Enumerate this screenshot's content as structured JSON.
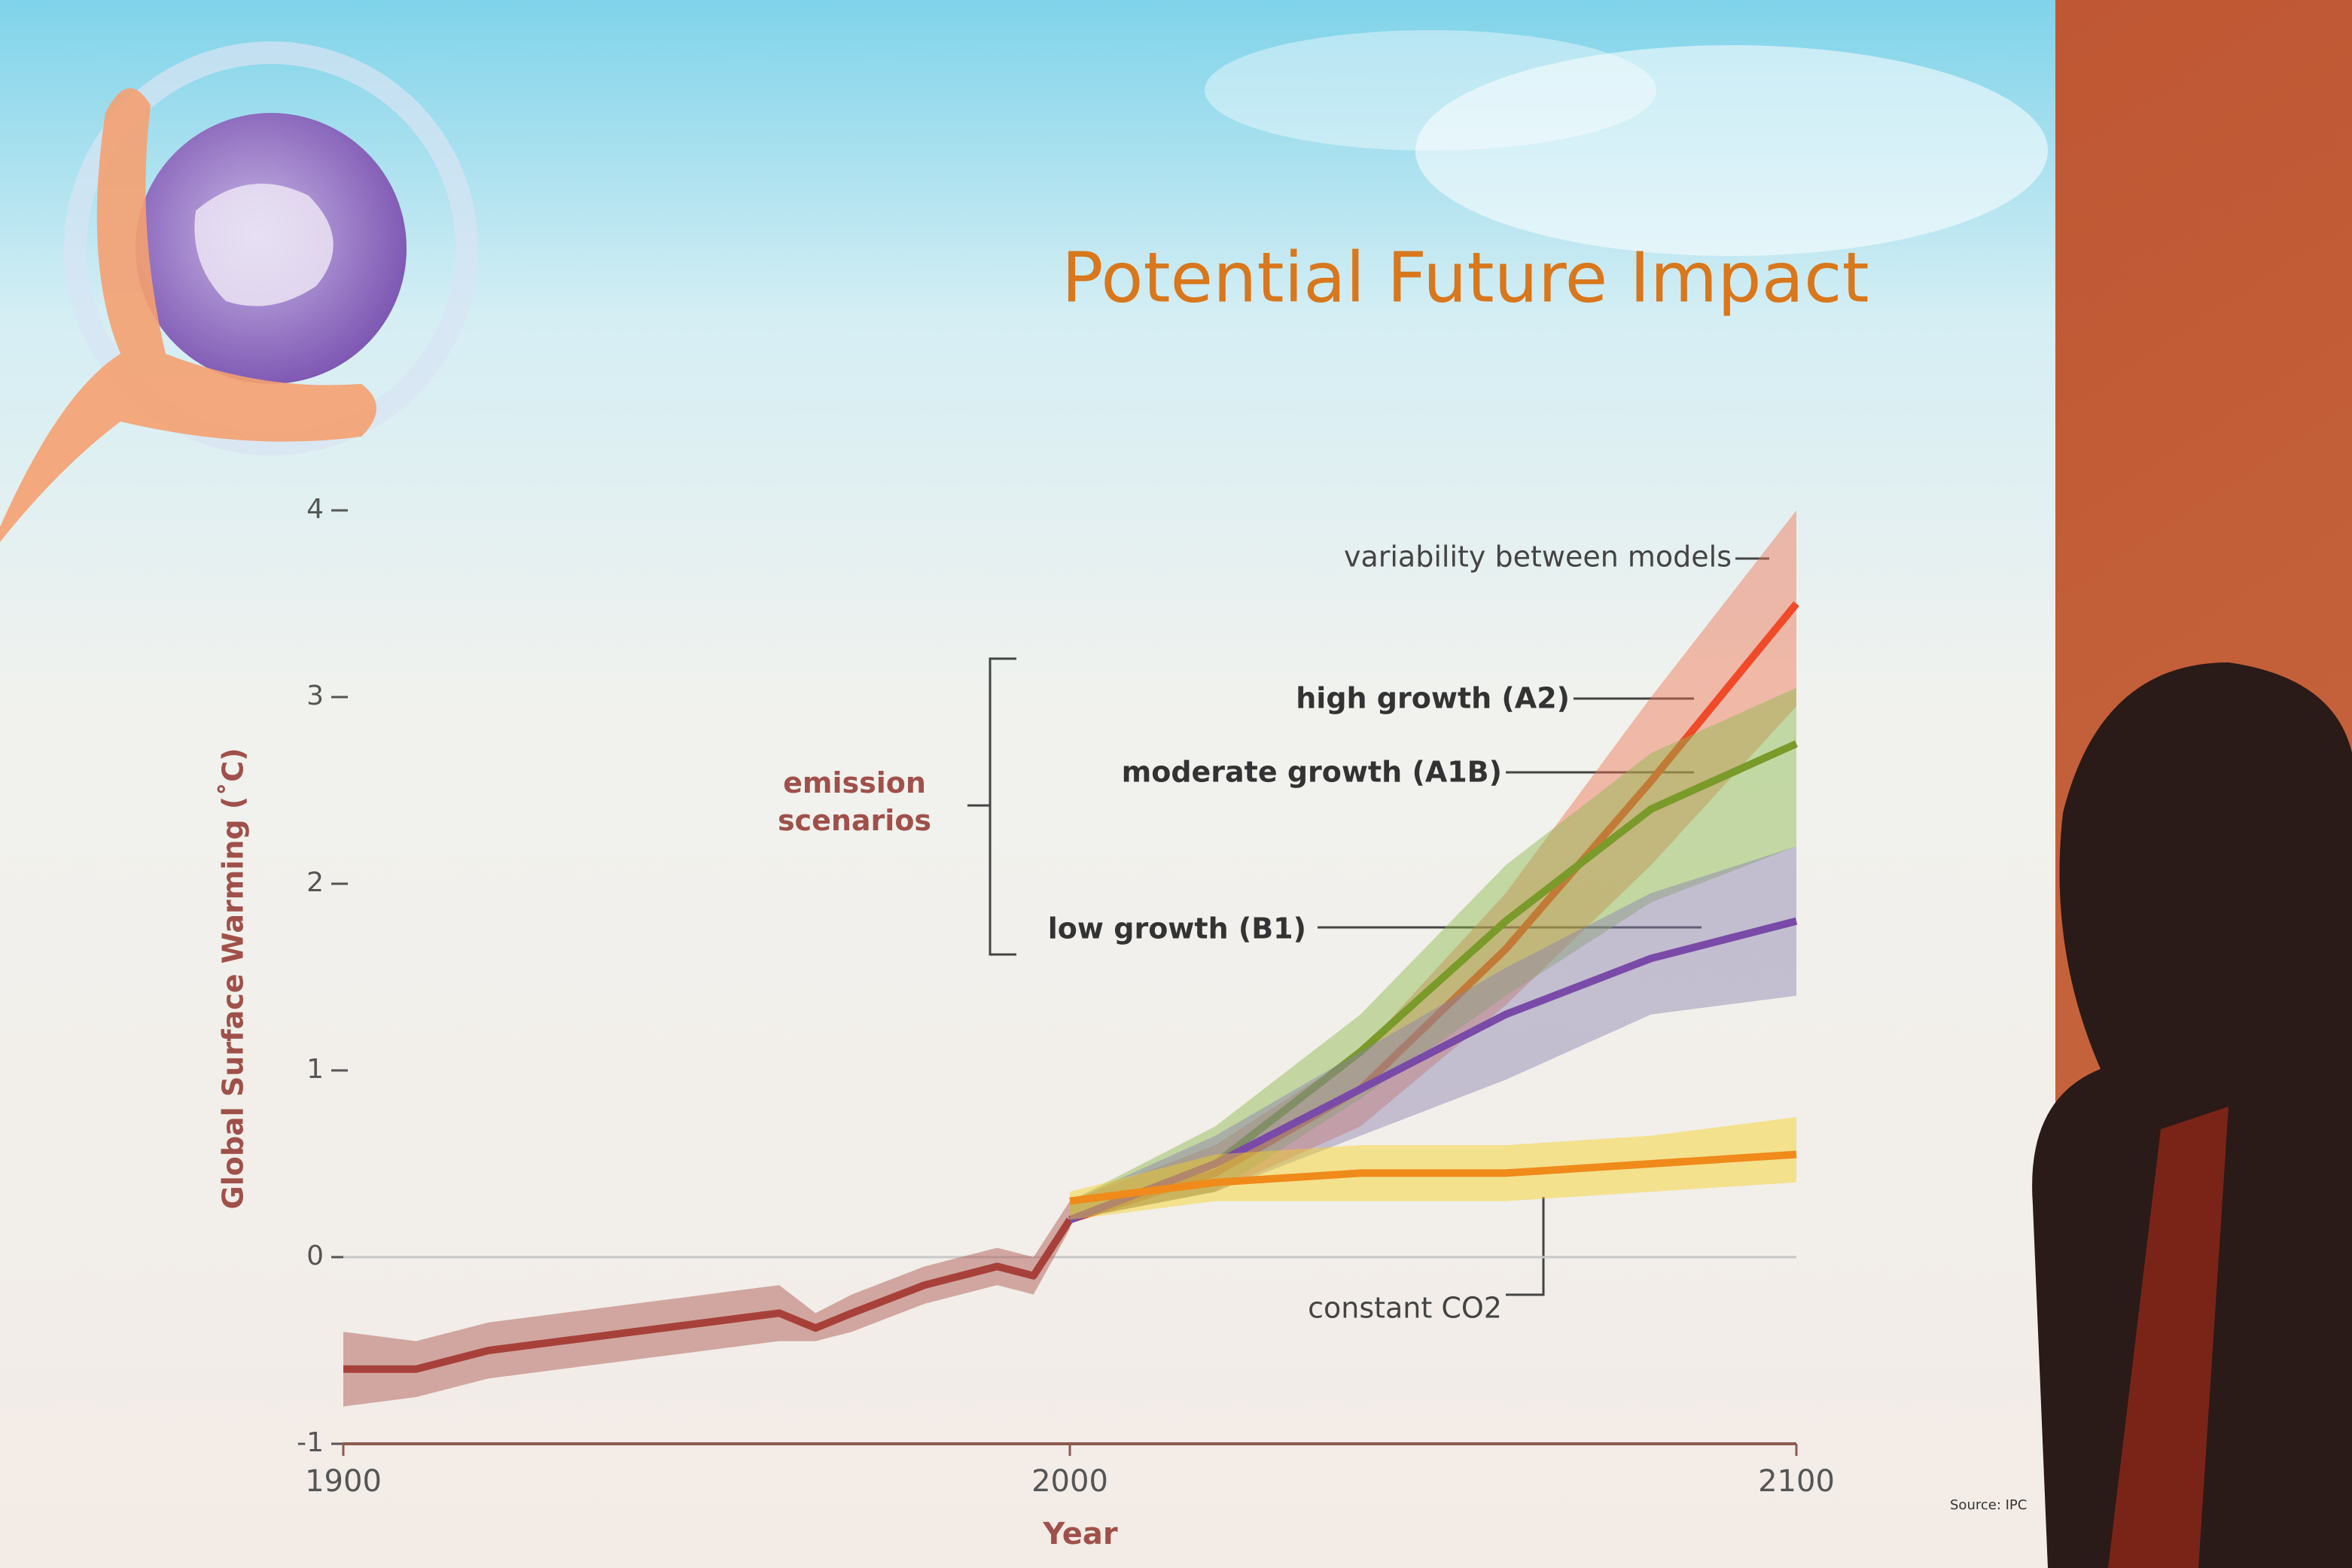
{
  "chart_data": {
    "type": "line",
    "title": "Potential Future Impact",
    "x_label": "Year",
    "y_label": "Global Surface Warming (˚C)",
    "xlim": [
      1900,
      2100
    ],
    "xticks": [
      1900,
      2000,
      2100
    ],
    "ylim": [
      -1,
      4
    ],
    "yticks": [
      -1,
      0,
      1,
      2,
      3,
      4
    ],
    "zero_line": true,
    "annotations": {
      "variability": "variability between models",
      "scenarios": "emission scenarios",
      "source": "Source: IPC"
    },
    "series": [
      {
        "color": "#a8403a",
        "band_color": "#a8504a",
        "x": [
          1900,
          1910,
          1920,
          1930,
          1940,
          1950,
          1960,
          1965,
          1970,
          1980,
          1990,
          1995,
          2000
        ],
        "values": [
          -0.6,
          -0.6,
          -0.5,
          -0.45,
          -0.4,
          -0.35,
          -0.3,
          -0.38,
          -0.3,
          -0.15,
          -0.05,
          -0.1,
          0.2
        ],
        "lower": [
          -0.8,
          -0.75,
          -0.65,
          -0.6,
          -0.55,
          -0.5,
          -0.45,
          -0.45,
          -0.4,
          -0.25,
          -0.15,
          -0.2,
          0.15
        ],
        "upper": [
          -0.4,
          -0.45,
          -0.35,
          -0.3,
          -0.25,
          -0.2,
          -0.15,
          -0.3,
          -0.2,
          -0.05,
          0.05,
          0.0,
          0.3
        ]
      },
      {
        "name": "high growth (A2)",
        "color": "#f04a28",
        "band_color": "#f07050",
        "x": [
          2000,
          2020,
          2040,
          2060,
          2080,
          2100
        ],
        "values": [
          0.2,
          0.45,
          0.9,
          1.65,
          2.55,
          3.5
        ],
        "lower": [
          0.2,
          0.35,
          0.7,
          1.35,
          2.1,
          2.95
        ],
        "upper": [
          0.3,
          0.6,
          1.1,
          1.95,
          3.0,
          4.0
        ]
      },
      {
        "name": "moderate growth (A1B)",
        "color": "#7a9a2a",
        "band_color": "#8ab84a",
        "x": [
          2000,
          2020,
          2040,
          2060,
          2080,
          2100
        ],
        "values": [
          0.2,
          0.5,
          1.1,
          1.8,
          2.4,
          2.75
        ],
        "lower": [
          0.2,
          0.35,
          0.85,
          1.4,
          1.9,
          2.2
        ],
        "upper": [
          0.3,
          0.7,
          1.3,
          2.1,
          2.7,
          3.05
        ]
      },
      {
        "name": "low growth (B1)",
        "color": "#7a4aa8",
        "band_color": "#8a80b0",
        "x": [
          2000,
          2020,
          2040,
          2060,
          2080,
          2100
        ],
        "values": [
          0.2,
          0.5,
          0.9,
          1.3,
          1.6,
          1.8
        ],
        "lower": [
          0.2,
          0.35,
          0.65,
          0.95,
          1.3,
          1.4
        ],
        "upper": [
          0.3,
          0.65,
          1.1,
          1.55,
          1.95,
          2.2
        ]
      },
      {
        "name": "constant CO2",
        "color": "#f08a1a",
        "band_color": "#f5d020",
        "x": [
          2000,
          2020,
          2040,
          2060,
          2080,
          2100
        ],
        "values": [
          0.3,
          0.4,
          0.45,
          0.45,
          0.5,
          0.55
        ],
        "lower": [
          0.2,
          0.3,
          0.3,
          0.3,
          0.35,
          0.4
        ],
        "upper": [
          0.35,
          0.55,
          0.6,
          0.6,
          0.65,
          0.75
        ]
      }
    ]
  }
}
